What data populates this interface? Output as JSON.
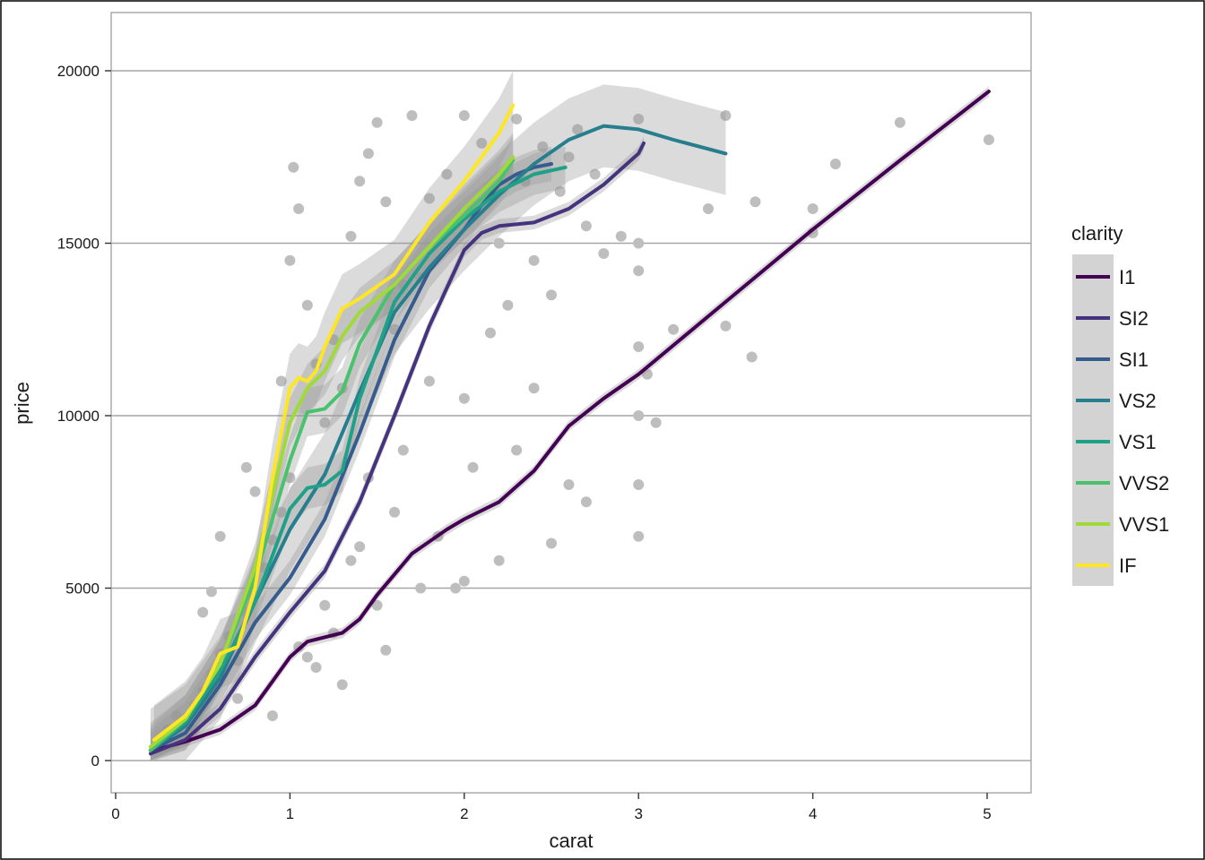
{
  "chart_data": {
    "type": "scatter",
    "xlabel": "carat",
    "ylabel": "price",
    "xlim": [
      0,
      5
    ],
    "ylim": [
      0,
      20000
    ],
    "x_ticks": [
      0,
      1,
      2,
      3,
      4,
      5
    ],
    "y_ticks": [
      0,
      5000,
      10000,
      15000,
      20000
    ],
    "x_tick_labels": [
      "0",
      "1",
      "2",
      "3",
      "4",
      "5"
    ],
    "y_tick_labels": [
      "0",
      "5000",
      "10000",
      "15000",
      "20000"
    ],
    "grid": "horizontal",
    "legend": {
      "title": "clarity",
      "placement": "right",
      "entries": [
        "I1",
        "SI2",
        "SI1",
        "VS2",
        "VS1",
        "VVS2",
        "VVS1",
        "IF"
      ]
    },
    "point_color": "#bebebe",
    "band_color": "#999999",
    "points": [
      [
        0.25,
        400
      ],
      [
        0.3,
        600
      ],
      [
        0.35,
        900
      ],
      [
        0.4,
        1100
      ],
      [
        0.45,
        1600
      ],
      [
        0.5,
        2000
      ],
      [
        0.55,
        2500
      ],
      [
        0.6,
        3100
      ],
      [
        0.65,
        3600
      ],
      [
        0.7,
        2900
      ],
      [
        0.75,
        4300
      ],
      [
        0.8,
        4800
      ],
      [
        0.85,
        5600
      ],
      [
        0.9,
        6400
      ],
      [
        0.95,
        7200
      ],
      [
        1.0,
        8200
      ],
      [
        1.0,
        14500
      ],
      [
        1.02,
        17200
      ],
      [
        1.05,
        16000
      ],
      [
        1.1,
        13200
      ],
      [
        1.15,
        11500
      ],
      [
        1.2,
        9800
      ],
      [
        1.25,
        12200
      ],
      [
        1.3,
        10800
      ],
      [
        1.35,
        15200
      ],
      [
        1.4,
        16800
      ],
      [
        1.45,
        17600
      ],
      [
        1.5,
        18500
      ],
      [
        1.55,
        16200
      ],
      [
        1.6,
        12500
      ],
      [
        1.65,
        9000
      ],
      [
        1.7,
        18700
      ],
      [
        1.75,
        14000
      ],
      [
        1.8,
        11000
      ],
      [
        1.9,
        17000
      ],
      [
        2.0,
        18700
      ],
      [
        2.0,
        10500
      ],
      [
        2.05,
        8500
      ],
      [
        2.1,
        17900
      ],
      [
        2.2,
        15000
      ],
      [
        2.3,
        18600
      ],
      [
        2.4,
        14500
      ],
      [
        2.5,
        13500
      ],
      [
        2.6,
        17500
      ],
      [
        2.7,
        15500
      ],
      [
        2.75,
        17000
      ],
      [
        3.0,
        18600
      ],
      [
        3.0,
        14200
      ],
      [
        3.0,
        12000
      ],
      [
        3.0,
        8000
      ],
      [
        3.0,
        6500
      ],
      [
        3.05,
        11200
      ],
      [
        3.1,
        9800
      ],
      [
        3.2,
        12500
      ],
      [
        3.4,
        16000
      ],
      [
        3.5,
        18700
      ],
      [
        3.5,
        12600
      ],
      [
        3.65,
        11700
      ],
      [
        3.67,
        16200
      ],
      [
        4.0,
        16000
      ],
      [
        4.0,
        15300
      ],
      [
        4.13,
        17300
      ],
      [
        4.5,
        18500
      ],
      [
        5.01,
        18000
      ],
      [
        2.5,
        6300
      ],
      [
        2.6,
        8000
      ],
      [
        2.7,
        7500
      ],
      [
        2.3,
        9000
      ],
      [
        2.2,
        5800
      ],
      [
        1.85,
        6500
      ],
      [
        1.75,
        5000
      ],
      [
        1.5,
        4500
      ],
      [
        1.3,
        2200
      ],
      [
        1.1,
        3000
      ],
      [
        0.9,
        1300
      ],
      [
        0.7,
        1800
      ],
      [
        0.6,
        6500
      ],
      [
        0.8,
        7800
      ],
      [
        0.95,
        11000
      ],
      [
        0.75,
        8500
      ],
      [
        0.55,
        4900
      ],
      [
        0.5,
        4300
      ],
      [
        2.4,
        10800
      ],
      [
        2.8,
        14700
      ],
      [
        2.9,
        15200
      ],
      [
        3.0,
        15000
      ],
      [
        3.0,
        10000
      ],
      [
        2.0,
        5200
      ],
      [
        1.95,
        5000
      ],
      [
        1.6,
        7200
      ],
      [
        1.4,
        6200
      ],
      [
        1.2,
        4500
      ],
      [
        1.05,
        3300
      ],
      [
        1.15,
        2700
      ],
      [
        1.25,
        3700
      ],
      [
        1.35,
        5800
      ],
      [
        1.55,
        3200
      ],
      [
        1.45,
        8200
      ],
      [
        1.65,
        13800
      ],
      [
        1.8,
        16300
      ],
      [
        2.15,
        12400
      ],
      [
        2.25,
        13200
      ],
      [
        2.35,
        16800
      ],
      [
        2.45,
        17800
      ],
      [
        2.55,
        16500
      ],
      [
        2.65,
        18300
      ],
      [
        0.4,
        600
      ],
      [
        0.45,
        900
      ],
      [
        0.3,
        900
      ],
      [
        0.35,
        1300
      ]
    ],
    "series": [
      {
        "name": "I1",
        "color": "#440154",
        "x": [
          0.22,
          0.4,
          0.6,
          0.8,
          0.9,
          1.0,
          1.1,
          1.3,
          1.4,
          1.5,
          1.7,
          1.9,
          2.0,
          2.2,
          2.4,
          2.6,
          2.8,
          3.0,
          3.5,
          4.0,
          4.5,
          5.01
        ],
        "y": [
          300,
          550,
          900,
          1600,
          2300,
          3000,
          3450,
          3700,
          4100,
          4800,
          6000,
          6700,
          7000,
          7500,
          8400,
          9700,
          10500,
          11200,
          13300,
          15400,
          17400,
          19400
        ],
        "band": 150
      },
      {
        "name": "SI2",
        "color": "#46337e",
        "x": [
          0.2,
          0.4,
          0.6,
          0.8,
          1.0,
          1.2,
          1.4,
          1.6,
          1.8,
          2.0,
          2.1,
          2.2,
          2.4,
          2.6,
          2.8,
          3.0,
          3.03
        ],
        "y": [
          200,
          600,
          1500,
          3000,
          4300,
          5500,
          7500,
          10000,
          12600,
          14800,
          15300,
          15500,
          15600,
          16000,
          16700,
          17600,
          17900
        ],
        "band": 200
      },
      {
        "name": "SI1",
        "color": "#365c8d",
        "x": [
          0.2,
          0.4,
          0.6,
          0.8,
          1.0,
          1.2,
          1.4,
          1.6,
          1.8,
          2.0,
          2.1,
          2.2,
          2.3,
          2.4,
          2.5
        ],
        "y": [
          300,
          800,
          2200,
          4000,
          5300,
          7000,
          9500,
          12200,
          14200,
          15400,
          16100,
          16700,
          17000,
          17200,
          17300
        ],
        "band": 500
      },
      {
        "name": "VS2",
        "color": "#277f8e",
        "x": [
          0.2,
          0.4,
          0.6,
          0.8,
          1.0,
          1.2,
          1.4,
          1.6,
          1.8,
          2.0,
          2.2,
          2.4,
          2.6,
          2.8,
          3.0,
          3.2,
          3.5
        ],
        "y": [
          300,
          1000,
          2400,
          4600,
          6700,
          8300,
          10700,
          13000,
          14300,
          15400,
          16400,
          17300,
          18000,
          18400,
          18300,
          18000,
          17600
        ],
        "band": 1200
      },
      {
        "name": "VS1",
        "color": "#1fa187",
        "x": [
          0.2,
          0.4,
          0.6,
          0.8,
          1.0,
          1.1,
          1.2,
          1.3,
          1.4,
          1.6,
          1.8,
          2.0,
          2.2,
          2.4,
          2.58
        ],
        "y": [
          300,
          1100,
          2600,
          4600,
          7300,
          7900,
          8000,
          8400,
          10500,
          13300,
          14700,
          15700,
          16500,
          17000,
          17200
        ],
        "band": 600
      },
      {
        "name": "VVS2",
        "color": "#4ac16d",
        "x": [
          0.2,
          0.4,
          0.6,
          0.8,
          1.0,
          1.1,
          1.2,
          1.3,
          1.4,
          1.6,
          1.8,
          2.0,
          2.2,
          2.28
        ],
        "y": [
          300,
          1200,
          2800,
          5300,
          8700,
          10100,
          10200,
          10700,
          12100,
          13800,
          14900,
          15800,
          16800,
          17400
        ],
        "band": 700
      },
      {
        "name": "VVS1",
        "color": "#a0da39",
        "x": [
          0.2,
          0.4,
          0.6,
          0.8,
          1.0,
          1.1,
          1.2,
          1.3,
          1.4,
          1.6,
          1.8,
          2.0,
          2.2,
          2.28
        ],
        "y": [
          400,
          1200,
          2800,
          5600,
          9800,
          10800,
          11300,
          12300,
          13000,
          13800,
          14900,
          16000,
          17000,
          17500
        ],
        "band": 700
      },
      {
        "name": "IF",
        "color": "#fde725",
        "x": [
          0.22,
          0.4,
          0.5,
          0.6,
          0.7,
          0.8,
          0.9,
          1.0,
          1.05,
          1.1,
          1.15,
          1.2,
          1.3,
          1.4,
          1.6,
          1.8,
          2.0,
          2.2,
          2.28
        ],
        "y": [
          600,
          1300,
          2000,
          3100,
          3300,
          5000,
          8200,
          10800,
          11100,
          11000,
          11300,
          12000,
          13100,
          13400,
          14100,
          15600,
          16800,
          18200,
          19000
        ],
        "band": 1000
      }
    ]
  }
}
